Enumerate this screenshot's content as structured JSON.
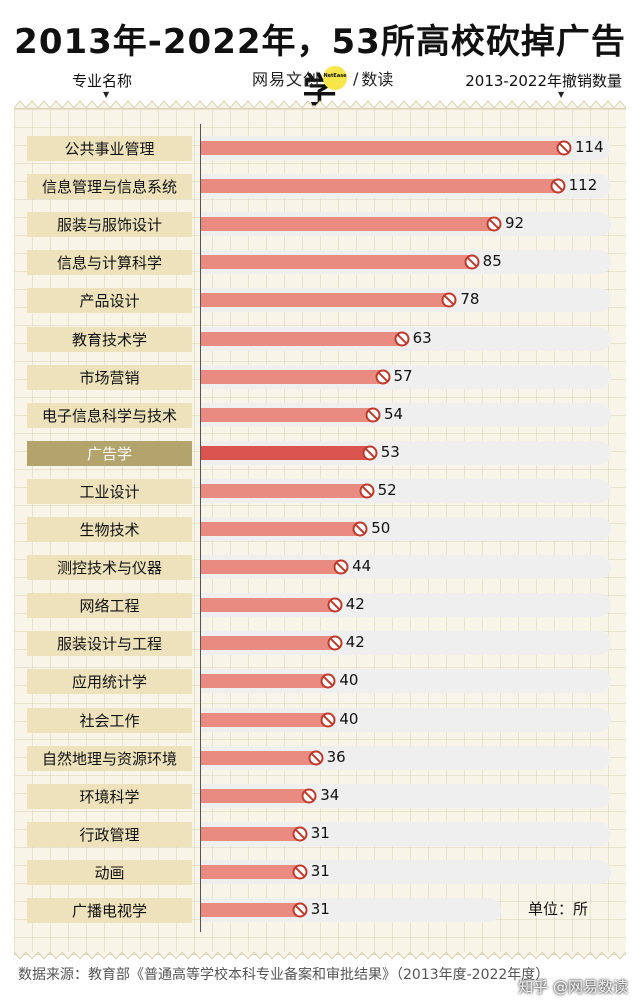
{
  "title": "2013年-2022年，53所高校砍掉广告学",
  "header": {
    "left_label": "专业名称",
    "right_label": "2013-2022年撤销数量",
    "brand_left": "网易文创",
    "brand_badge": "NetEase",
    "brand_right": "数读"
  },
  "unit": "单位：所",
  "source": "数据来源：教育部《普通高等学校本科专业备案和审批结果》（2013年度-2022年度）",
  "watermark": "知乎 @网易数读",
  "colors": {
    "bar": "#ea8b82",
    "bar_highlight": "#d9534f",
    "label_bg": "#ede2bb",
    "label_highlight_bg": "#b3a46e",
    "track": "#efefef"
  },
  "icons": {
    "bar_end": "no-entry-icon"
  },
  "chart_data": {
    "type": "bar",
    "orientation": "horizontal",
    "categories": [
      "公共事业管理",
      "信息管理与信息系统",
      "服装与服饰设计",
      "信息与计算科学",
      "产品设计",
      "教育技术学",
      "市场营销",
      "电子信息科学与技术",
      "广告学",
      "工业设计",
      "生物技术",
      "测控技术与仪器",
      "网络工程",
      "服装设计与工程",
      "应用统计学",
      "社会工作",
      "自然地理与资源环境",
      "环境科学",
      "行政管理",
      "动画",
      "广播电视学"
    ],
    "values": [
      114,
      112,
      92,
      85,
      78,
      63,
      57,
      54,
      53,
      52,
      50,
      44,
      42,
      42,
      40,
      40,
      36,
      34,
      31,
      31,
      31
    ],
    "value_labels": [
      "114",
      "112",
      "92",
      "85",
      "78",
      "63",
      "57",
      "54",
      "53",
      "52",
      "50",
      "44",
      "42",
      "42",
      "40",
      "40",
      "36",
      "34",
      "31",
      "31",
      "31"
    ],
    "highlight": "广告学",
    "xlim": [
      0,
      120
    ],
    "grid": false
  }
}
